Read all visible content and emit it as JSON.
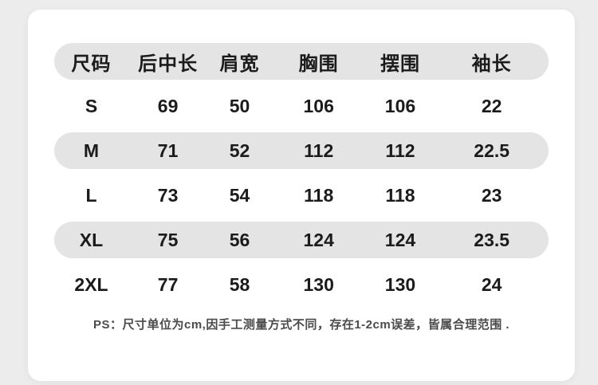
{
  "chart_data": {
    "type": "table",
    "columns": [
      "尺码",
      "后中长",
      "肩宽",
      "胸围",
      "摆围",
      "袖长"
    ],
    "rows": [
      {
        "size": "S",
        "values": [
          "69",
          "50",
          "106",
          "106",
          "22"
        ]
      },
      {
        "size": "M",
        "values": [
          "71",
          "52",
          "112",
          "112",
          "22.5"
        ]
      },
      {
        "size": "L",
        "values": [
          "73",
          "54",
          "118",
          "118",
          "23"
        ]
      },
      {
        "size": "XL",
        "values": [
          "75",
          "56",
          "124",
          "124",
          "23.5"
        ]
      },
      {
        "size": "2XL",
        "values": [
          "77",
          "58",
          "130",
          "130",
          "24"
        ]
      }
    ],
    "note": "PS：尺寸单位为cm,因手工测量方式不同，存在1-2cm误差，皆属合理范围 .",
    "layout_hints": {
      "striped_rows": [
        "header",
        "M",
        "XL"
      ],
      "unit": "cm"
    }
  },
  "colors": {
    "page_background": "#ececec",
    "card_background": "#ffffff",
    "stripe_pill": "#e4e4e4",
    "text": "#1b1b1b",
    "note_text": "#4b4b4b"
  }
}
